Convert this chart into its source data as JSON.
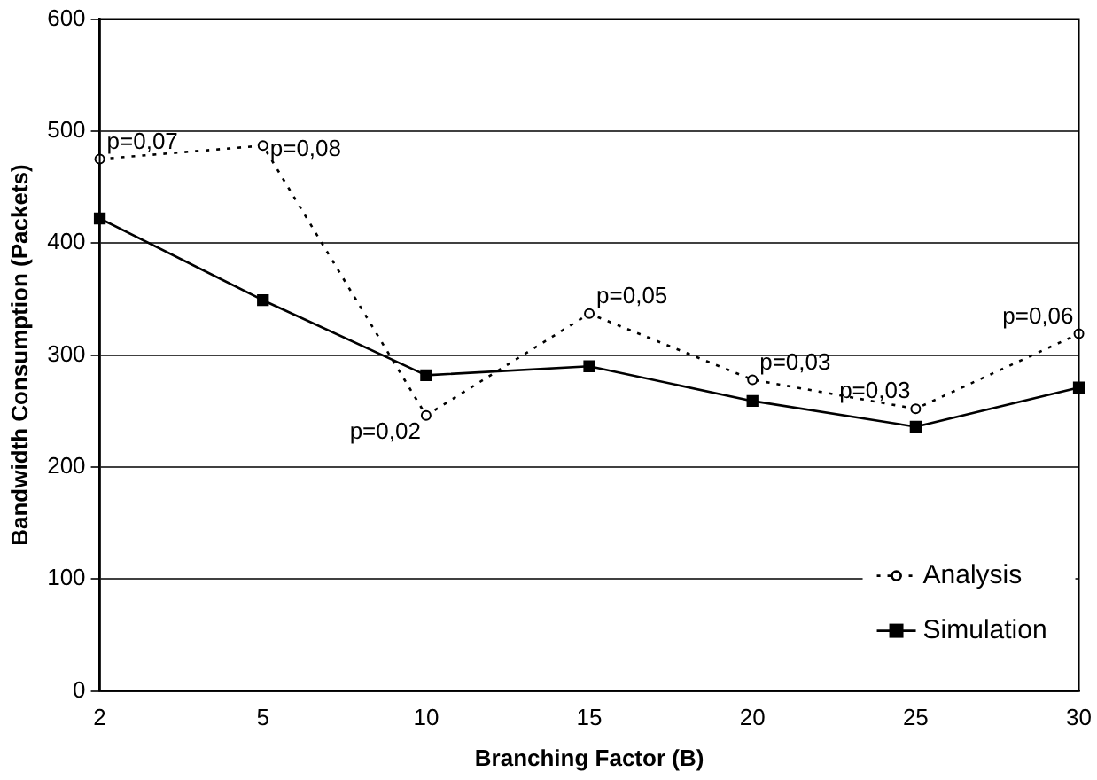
{
  "chart_data": {
    "type": "line",
    "xlabel": "Branching Factor (B)",
    "ylabel": "Bandwidth Consumption (Packets)",
    "categories": [
      "2",
      "5",
      "10",
      "15",
      "20",
      "25",
      "30"
    ],
    "series": [
      {
        "name": "Analysis",
        "color": "#000000",
        "marker": "circle",
        "line_style": "dotted",
        "values": [
          475,
          487,
          246,
          337,
          278,
          252,
          319
        ]
      },
      {
        "name": "Simulation",
        "color": "#000000",
        "marker": "square",
        "line_style": "solid",
        "values": [
          422,
          349,
          282,
          290,
          259,
          236,
          271
        ]
      }
    ],
    "annotations": [
      {
        "text": "p=0,07",
        "x": "2",
        "y": 475
      },
      {
        "text": "p=0,08",
        "x": "5",
        "y": 487
      },
      {
        "text": "p=0,02",
        "x": "10",
        "y": 246
      },
      {
        "text": "p=0,05",
        "x": "15",
        "y": 337
      },
      {
        "text": "p=0,03",
        "x": "20",
        "y": 278
      },
      {
        "text": "p=0,03",
        "x": "25",
        "y": 252
      },
      {
        "text": "p=0,06",
        "x": "30",
        "y": 319
      }
    ],
    "ylim": [
      0,
      600
    ],
    "yticks": [
      0,
      100,
      200,
      300,
      400,
      500,
      600
    ],
    "grid": "y",
    "legend": "bottom right"
  }
}
